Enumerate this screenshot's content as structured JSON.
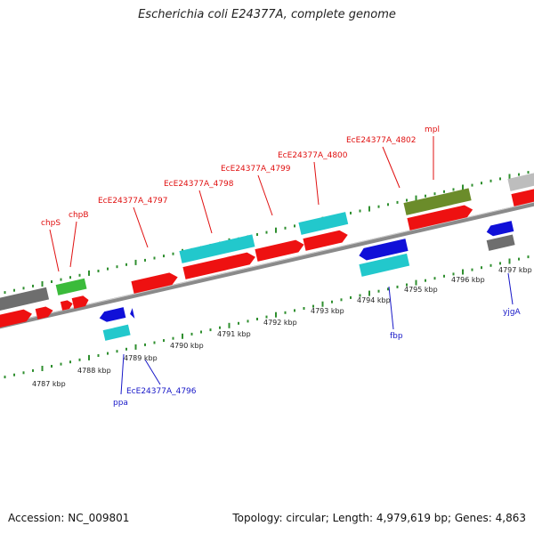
{
  "title": "Escherichia coli E24377A, complete genome",
  "footer": {
    "accession": "Accession: NC_009801",
    "topology": "Topology: circular; Length: 4,979,619 bp; Genes: 4,863"
  },
  "colors": {
    "backbone": "#8a8a8a",
    "forward_tick": "#2f8f2f",
    "reverse_tick": "#2f8f2f",
    "gene_red": "#ee1111",
    "gene_cyan": "#22c8cc",
    "gene_blue": "#1010d8",
    "gene_green": "#3bbb3b",
    "gene_olive": "#6b8c2a",
    "gene_grey": "#6e6e6e",
    "gene_lightgrey": "#bdbdbd",
    "label_red": "#e01010",
    "label_blue": "#1818c8"
  },
  "scale_labels": [
    "4787 kbp",
    "4788 kbp",
    "4789 kbp",
    "4790 kbp",
    "4791 kbp",
    "4792 kbp",
    "4793 kbp",
    "4794 kbp",
    "4795 kbp",
    "4796 kbp",
    "4797 kbp"
  ],
  "gene_labels_forward": [
    "chpS",
    "chpB",
    "EcE24377A_4797",
    "EcE24377A_4798",
    "EcE24377A_4799",
    "EcE24377A_4800",
    "EcE24377A_4802",
    "mpl"
  ],
  "gene_labels_reverse": [
    "ppa",
    "EcE24377A_4796",
    "fbp",
    "yjgA"
  ]
}
